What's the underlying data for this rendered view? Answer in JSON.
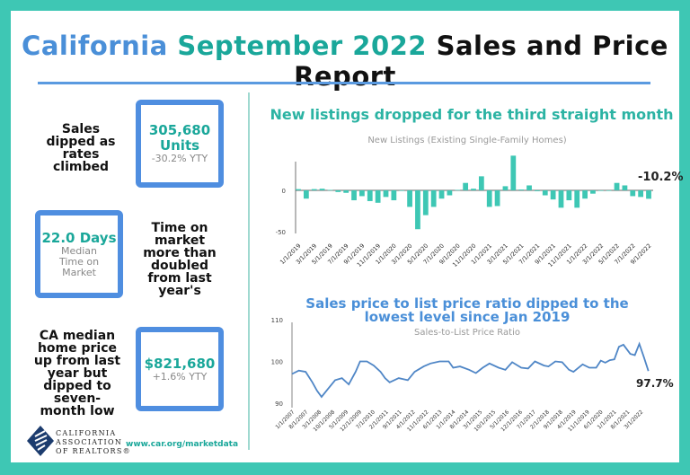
{
  "header": {
    "title_part1": "California",
    "title_part2": "September 2022",
    "title_part3": "Sales and Price Report"
  },
  "stats": [
    {
      "note": "Sales dipped as rates climbed",
      "value": "305,680",
      "value2": "Units",
      "sub": "-30.2% YTY"
    },
    {
      "note": "Time on market more than doubled from last year's",
      "value": "22.0 Days",
      "sub": "Median Time on Market"
    },
    {
      "note": "CA median home price up from last year but dipped to seven-month low",
      "value": "$821,680",
      "sub": "+1.6% YTY"
    }
  ],
  "footer": {
    "logo_lines": [
      "CALIFORNIA",
      "ASSOCIATION",
      "OF REALTORS®"
    ],
    "url": "www.car.org/marketdata"
  },
  "colors": {
    "teal": "#3ec7b4",
    "blue": "#4f8ee0",
    "bar": "#3ec7b4",
    "line": "#4f86c6"
  },
  "chart_data": [
    {
      "type": "bar",
      "headline": "New listings dropped for the third straight month",
      "title": "New Listings (Existing Single-Family Homes)",
      "ylim": [
        -50,
        45
      ],
      "yticks": [
        "0",
        "-50"
      ],
      "ytick_values": [
        0,
        -50
      ],
      "annotation": "-10.2%",
      "xtick_labels": [
        "1/1/2019",
        "3/1/2019",
        "5/1/2019",
        "7/1/2019",
        "9/1/2019",
        "11/1/2019",
        "1/1/2020",
        "3/1/2020",
        "5/1/2020",
        "7/1/2020",
        "9/1/2020",
        "11/1/2020",
        "1/1/2021",
        "3/1/2021",
        "5/1/2021",
        "7/1/2021",
        "9/1/2021",
        "11/1/2021",
        "1/1/2022",
        "3/1/2022",
        "5/1/2022",
        "7/1/2022",
        "9/1/2022"
      ],
      "values": [
        1.5,
        -10,
        1.5,
        2,
        0.5,
        -2,
        -3,
        -12,
        -7,
        -13,
        -15,
        -8,
        -12,
        0,
        -20,
        -47,
        -30,
        -20,
        -10,
        -6,
        0.5,
        9,
        2,
        17,
        -20,
        -19,
        5,
        42,
        1,
        6,
        -1,
        -6,
        -11,
        -21,
        -12,
        -21,
        -10,
        -4,
        0,
        0,
        9,
        6,
        -7,
        -8,
        -10.2
      ]
    },
    {
      "type": "line",
      "headline": "Sales price to list price ratio dipped to the lowest level since Jan 2019",
      "title": "Sales-to-List Price Ratio",
      "ylim": [
        90,
        110
      ],
      "yticks": [
        "110",
        "100",
        "90"
      ],
      "ytick_values": [
        110,
        100,
        90
      ],
      "xlim": [
        2007.0,
        2022.75
      ],
      "annotation": "97.7%",
      "xtick_labels": [
        "1/1/2007",
        "8/1/2007",
        "3/1/2008",
        "10/1/2008",
        "5/1/2009",
        "12/1/2009",
        "7/1/2010",
        "2/1/2011",
        "9/1/2011",
        "4/1/2012",
        "11/1/2012",
        "6/1/2013",
        "1/1/2014",
        "8/1/2014",
        "3/1/2015",
        "10/1/2015",
        "5/1/2016",
        "12/1/2016",
        "7/1/2017",
        "2/1/2018",
        "9/1/2018",
        "4/1/2019",
        "11/1/2019",
        "6/1/2020",
        "1/1/2021",
        "8/1/2021",
        "3/1/2022"
      ],
      "x": [
        2007.0,
        2007.3,
        2007.6,
        2007.9,
        2008.1,
        2008.3,
        2008.6,
        2008.9,
        2009.2,
        2009.5,
        2009.8,
        2010.0,
        2010.3,
        2010.6,
        2010.9,
        2011.1,
        2011.3,
        2011.7,
        2012.1,
        2012.4,
        2012.8,
        2013.1,
        2013.5,
        2013.9,
        2014.1,
        2014.4,
        2014.8,
        2015.1,
        2015.4,
        2015.7,
        2016.1,
        2016.4,
        2016.7,
        2017.1,
        2017.4,
        2017.7,
        2018.1,
        2018.3,
        2018.6,
        2018.9,
        2019.2,
        2019.4,
        2019.8,
        2020.1,
        2020.4,
        2020.6,
        2020.8,
        2021.0,
        2021.2,
        2021.4,
        2021.6,
        2021.9,
        2022.1,
        2022.3,
        2022.5,
        2022.7
      ],
      "y": [
        97,
        97.8,
        97.5,
        95,
        93,
        91.5,
        93.5,
        95.5,
        96,
        94.5,
        97.5,
        100,
        100,
        99,
        97.5,
        96,
        95,
        96,
        95.5,
        97.5,
        98.8,
        99.5,
        100,
        100,
        98.5,
        98.8,
        98,
        97.2,
        98.5,
        99.5,
        98.5,
        98,
        99.8,
        98.5,
        98.3,
        100,
        99,
        98.8,
        100,
        99.8,
        98,
        97.5,
        99.3,
        98.5,
        98.5,
        100.2,
        99.7,
        100.3,
        100.5,
        103.5,
        104,
        101.8,
        101.5,
        104.2,
        101,
        97.7
      ]
    }
  ]
}
